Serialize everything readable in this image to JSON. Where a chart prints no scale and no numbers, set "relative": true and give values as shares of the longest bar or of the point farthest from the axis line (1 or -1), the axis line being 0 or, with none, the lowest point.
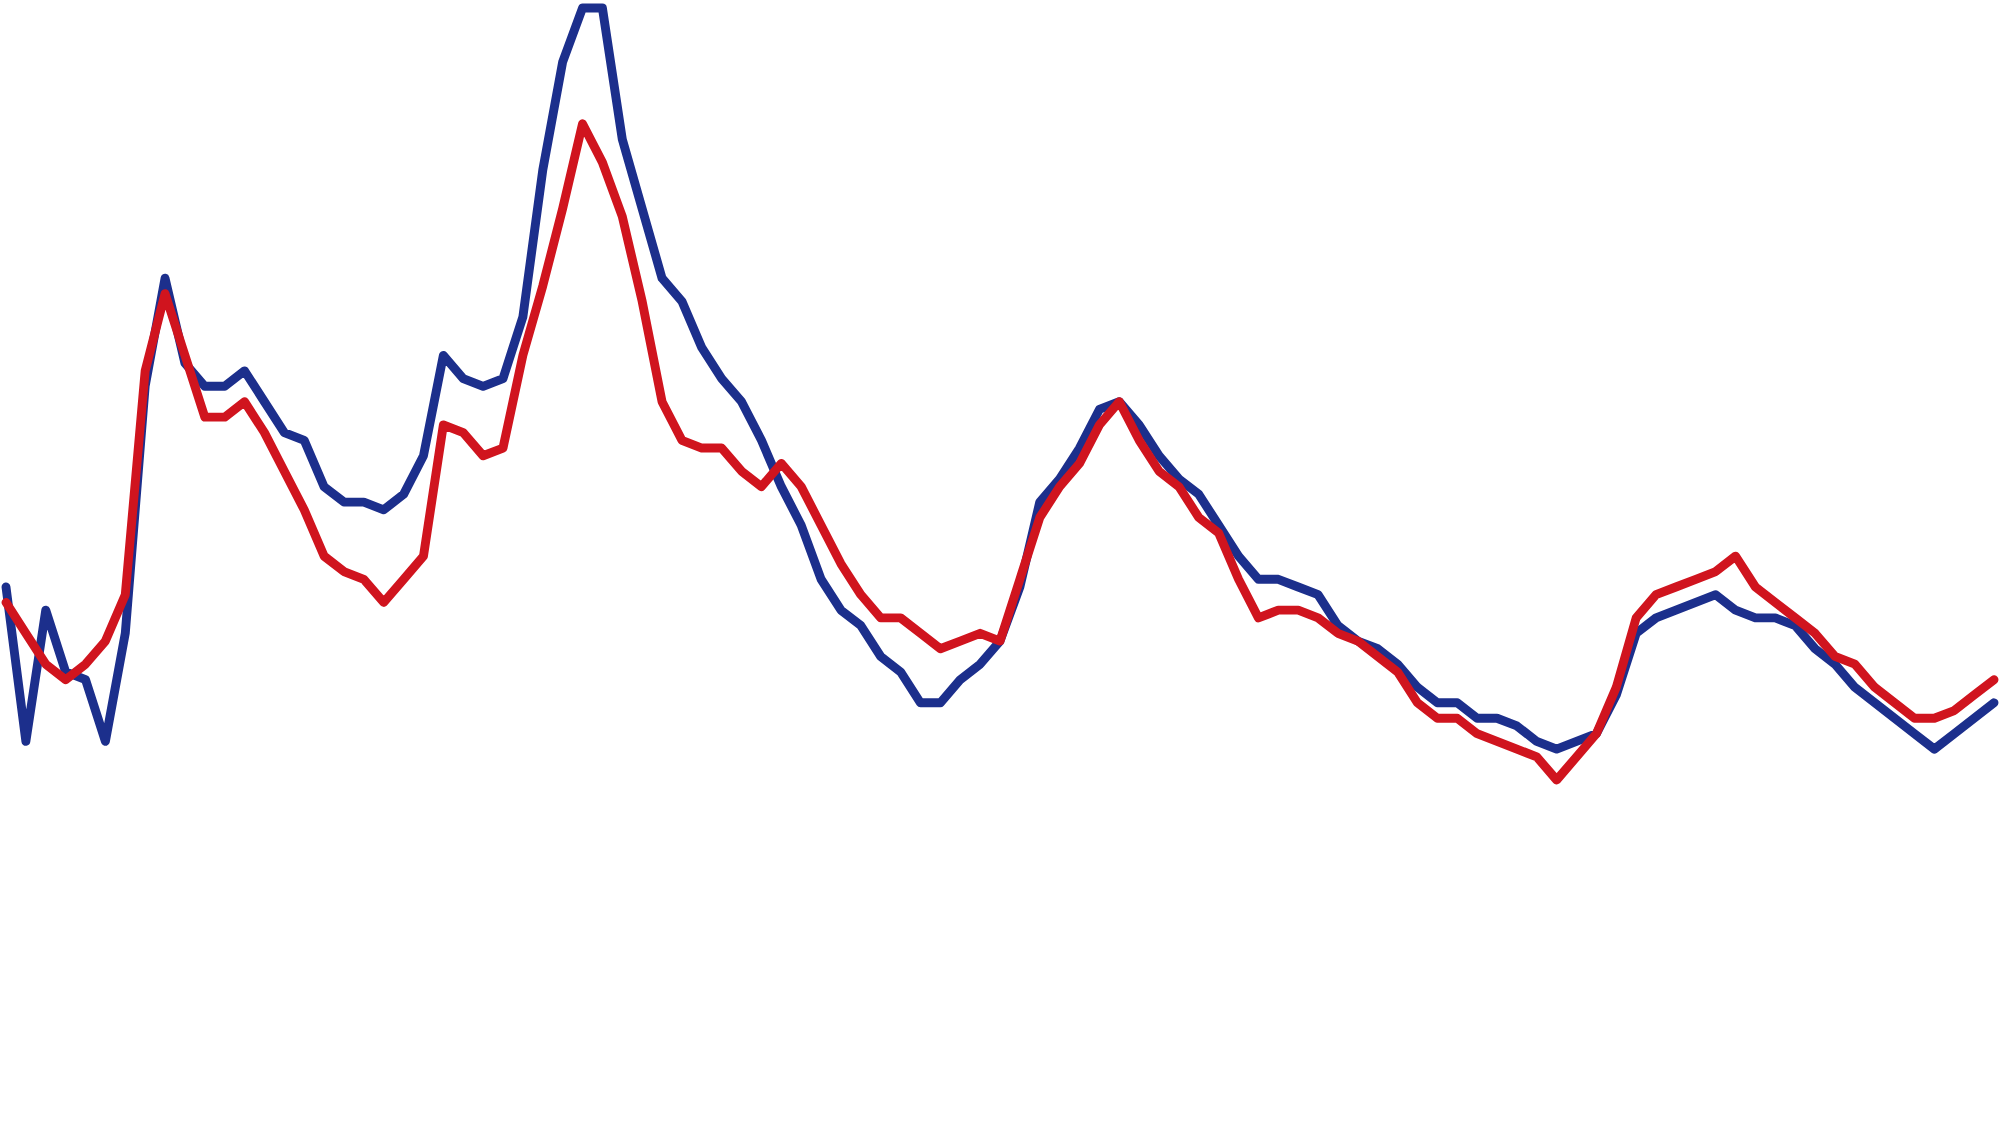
{
  "chart_data": {
    "type": "line",
    "relative": true,
    "line_style": "solid",
    "categories": [
      null,
      null,
      null,
      null,
      null,
      null,
      null,
      null,
      null,
      null,
      null,
      null,
      null,
      null,
      null,
      null,
      null,
      null,
      null,
      null,
      null,
      null,
      null,
      null,
      null,
      null,
      null,
      null,
      null,
      null,
      null,
      null,
      null,
      null,
      null,
      null,
      null,
      null,
      null,
      null,
      null,
      null,
      null,
      null,
      null,
      null,
      null,
      null,
      null,
      null,
      null,
      null,
      null,
      null,
      null,
      null,
      null,
      null,
      null,
      null,
      null,
      null,
      null,
      null,
      null,
      null,
      null,
      null,
      null,
      null,
      null,
      null,
      null,
      null,
      null,
      null,
      null,
      null,
      null,
      null,
      null,
      null,
      null,
      null,
      null,
      null,
      null,
      null,
      null,
      null,
      null,
      null,
      null,
      null,
      null,
      null,
      null,
      null,
      null,
      null,
      null
    ],
    "series": [
      {
        "color": "#1c2f8c",
        "values": [
          0.25,
          0.05,
          0.22,
          0.14,
          0.13,
          0.05,
          0.19,
          0.51,
          0.65,
          0.54,
          0.51,
          0.51,
          0.53,
          0.49,
          0.45,
          0.44,
          0.38,
          0.36,
          0.36,
          0.35,
          0.37,
          0.42,
          0.55,
          0.52,
          0.51,
          0.52,
          0.6,
          0.79,
          0.93,
          1,
          1,
          0.83,
          0.74,
          0.65,
          0.62,
          0.56,
          0.52,
          0.49,
          0.44,
          0.38,
          0.33,
          0.26,
          0.22,
          0.2,
          0.16,
          0.14,
          0.1,
          0.1,
          0.13,
          0.15,
          0.18,
          0.25,
          0.36,
          0.39,
          0.43,
          0.48,
          0.49,
          0.46,
          0.42,
          0.39,
          0.37,
          0.33,
          0.29,
          0.26,
          0.26,
          0.25,
          0.24,
          0.2,
          0.18,
          0.17,
          0.15,
          0.12,
          0.1,
          0.1,
          0.08,
          0.08,
          0.07,
          0.05,
          0.04,
          0.05,
          0.06,
          0.11,
          0.19,
          0.21,
          0.22,
          0.23,
          0.24,
          0.22,
          0.21,
          0.21,
          0.2,
          0.17,
          0.15,
          0.12,
          0.1,
          0.08,
          0.06,
          0.04,
          0.06,
          0.08,
          0.1
        ]
      },
      {
        "color": "#d0141e",
        "values": [
          0.23,
          0.19,
          0.15,
          0.13,
          0.15,
          0.18,
          0.24,
          0.53,
          0.63,
          0.55,
          0.47,
          0.47,
          0.49,
          0.45,
          0.4,
          0.35,
          0.29,
          0.27,
          0.26,
          0.23,
          0.26,
          0.29,
          0.46,
          0.45,
          0.42,
          0.43,
          0.55,
          0.64,
          0.74,
          0.85,
          0.8,
          0.73,
          0.62,
          0.49,
          0.44,
          0.43,
          0.43,
          0.4,
          0.38,
          0.41,
          0.38,
          0.33,
          0.28,
          0.24,
          0.21,
          0.21,
          0.19,
          0.17,
          0.18,
          0.19,
          0.18,
          0.26,
          0.34,
          0.38,
          0.41,
          0.46,
          0.49,
          0.44,
          0.4,
          0.38,
          0.34,
          0.32,
          0.26,
          0.21,
          0.22,
          0.22,
          0.21,
          0.19,
          0.18,
          0.16,
          0.14,
          0.1,
          0.08,
          0.08,
          0.06,
          0.05,
          0.04,
          0.03,
          0,
          0.03,
          0.06,
          0.12,
          0.21,
          0.24,
          0.25,
          0.26,
          0.27,
          0.29,
          0.25,
          0.23,
          0.21,
          0.19,
          0.16,
          0.15,
          0.12,
          0.1,
          0.08,
          0.08,
          0.09,
          0.11,
          0.13
        ]
      }
    ]
  }
}
